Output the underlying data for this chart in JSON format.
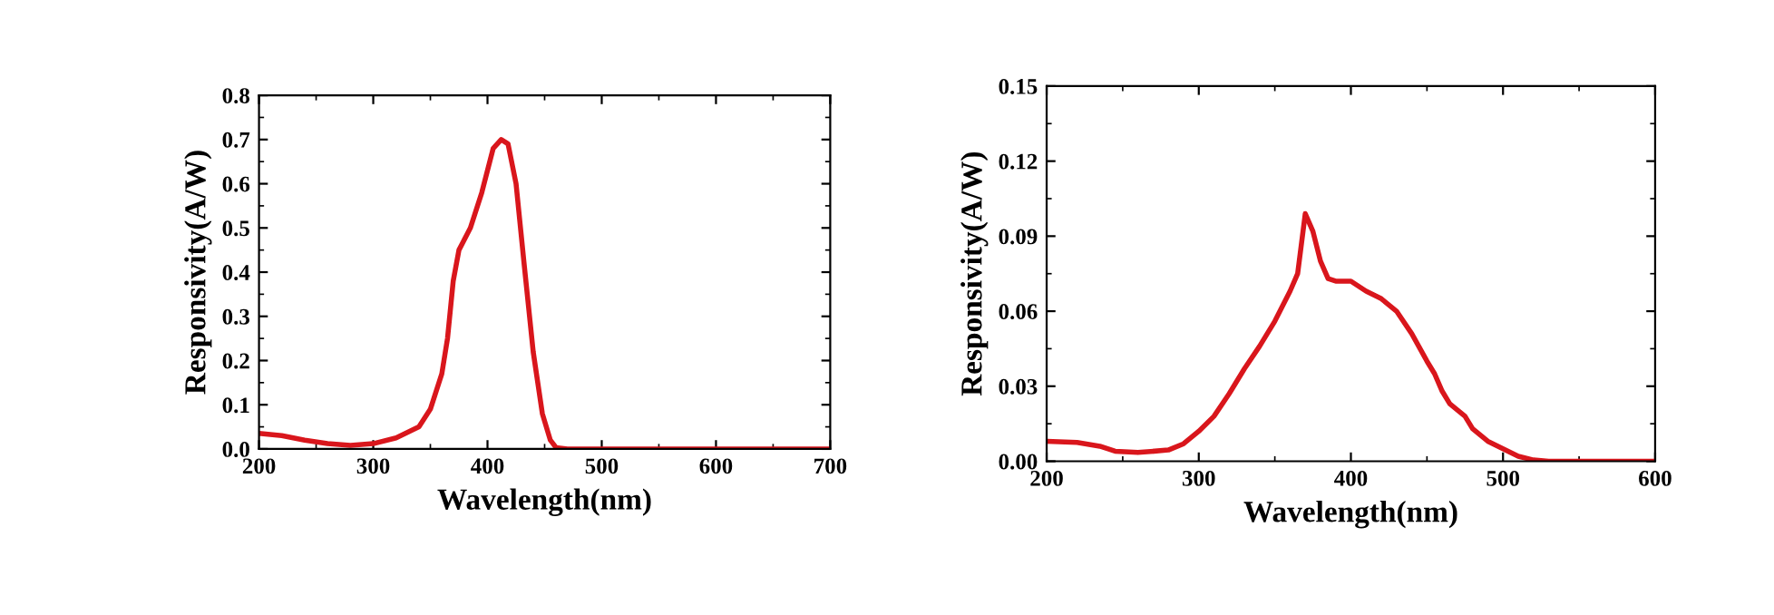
{
  "chart_data": [
    {
      "type": "line",
      "xlabel": "Wavelength(nm)",
      "ylabel": "Responsivity(A/W)",
      "xlim": [
        200,
        700
      ],
      "ylim": [
        0,
        0.8
      ],
      "xticks": [
        200,
        300,
        400,
        500,
        600,
        700
      ],
      "yticks": [
        {
          "value": 0,
          "label": "0.0"
        },
        0.1,
        0.2,
        0.3,
        0.4,
        0.5,
        0.6,
        0.7,
        0.8
      ],
      "marker": "none",
      "line_style": "solid",
      "grid": false,
      "series": [
        {
          "color": "#d9161c",
          "x": [
            200,
            220,
            240,
            260,
            280,
            300,
            320,
            340,
            350,
            360,
            365,
            370,
            375,
            385,
            395,
            405,
            412,
            418,
            425,
            432,
            440,
            448,
            455,
            460,
            470,
            500,
            600,
            700
          ],
          "values": [
            0.035,
            0.03,
            0.02,
            0.012,
            0.008,
            0.012,
            0.025,
            0.05,
            0.09,
            0.17,
            0.25,
            0.38,
            0.45,
            0.5,
            0.58,
            0.68,
            0.7,
            0.69,
            0.6,
            0.42,
            0.22,
            0.08,
            0.02,
            0.003,
            0,
            0,
            0,
            0
          ]
        }
      ]
    },
    {
      "type": "line",
      "xlabel": "Wavelength(nm)",
      "ylabel": "Responsivity(A/W)",
      "xlim": [
        200,
        600
      ],
      "ylim": [
        0,
        0.15
      ],
      "xticks": [
        200,
        300,
        400,
        500,
        600
      ],
      "yticks": [
        {
          "value": 0,
          "label": "0.00"
        },
        {
          "value": 0.03,
          "label": "0.03"
        },
        {
          "value": 0.06,
          "label": "0.06"
        },
        {
          "value": 0.09,
          "label": "0.09"
        },
        {
          "value": 0.12,
          "label": "0.12"
        },
        {
          "value": 0.15,
          "label": "0.15"
        }
      ],
      "marker": "none",
      "line_style": "solid",
      "grid": false,
      "series": [
        {
          "color": "#d9161c",
          "x": [
            200,
            220,
            235,
            245,
            260,
            280,
            290,
            300,
            310,
            320,
            330,
            340,
            350,
            360,
            365,
            370,
            375,
            380,
            385,
            390,
            400,
            410,
            420,
            430,
            440,
            450,
            455,
            460,
            465,
            475,
            480,
            490,
            500,
            510,
            520,
            530,
            600
          ],
          "values": [
            0.008,
            0.0075,
            0.006,
            0.004,
            0.0035,
            0.0045,
            0.007,
            0.012,
            0.018,
            0.027,
            0.037,
            0.046,
            0.056,
            0.068,
            0.075,
            0.099,
            0.092,
            0.08,
            0.073,
            0.072,
            0.072,
            0.068,
            0.065,
            0.06,
            0.051,
            0.04,
            0.035,
            0.028,
            0.023,
            0.018,
            0.013,
            0.008,
            0.005,
            0.002,
            0.0005,
            0,
            0
          ]
        }
      ]
    }
  ]
}
